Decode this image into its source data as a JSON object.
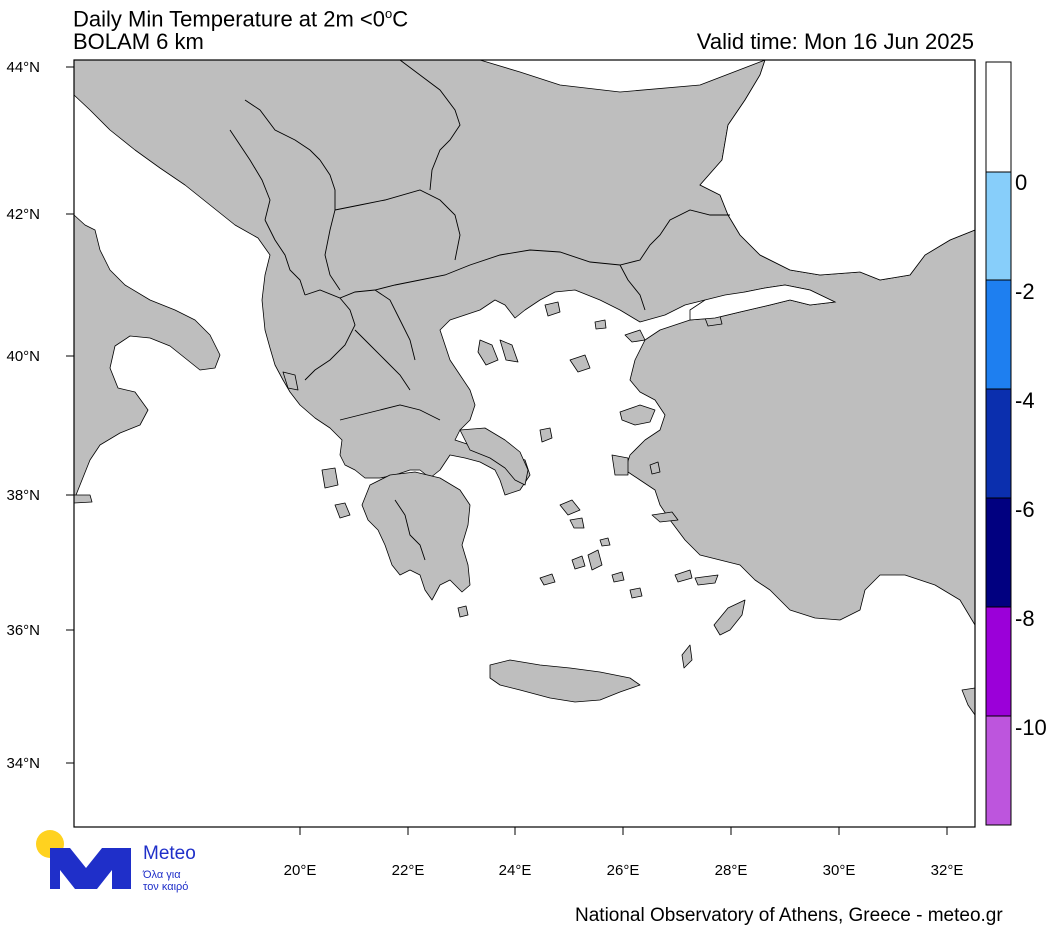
{
  "title": {
    "line1_prefix": "Daily Min Temperature at 2m <0",
    "line1_sup": "o",
    "line1_suffix": "C",
    "line2": "BOLAM 6 km",
    "valid_time": "Valid time: Mon 16 Jun 2025"
  },
  "map": {
    "lat_labels": [
      "44°N",
      "42°N",
      "40°N",
      "38°N",
      "36°N",
      "34°N"
    ],
    "lon_labels": [
      "20°E",
      "22°E",
      "24°E",
      "26°E",
      "28°E",
      "30°E",
      "32°E"
    ],
    "land_color": "#bebebe",
    "sea_color": "#ffffff",
    "border_color": "#000000"
  },
  "colorbar": {
    "labels": [
      "0",
      "-2",
      "-4",
      "-6",
      "-8",
      "-10"
    ],
    "colors": [
      "#ffffff",
      "#87cefa",
      "#1e7ff0",
      "#0b2fae",
      "#010080",
      "#9b00d9",
      "#bd55dd"
    ]
  },
  "logo": {
    "name": "Meteo",
    "tagline_line1": "Όλα για",
    "tagline_line2": "τον καιρό",
    "sun_color": "#ffd21f",
    "brand_color": "#1f2fc9"
  },
  "footer": "National Observatory of Athens, Greece - meteo.gr"
}
